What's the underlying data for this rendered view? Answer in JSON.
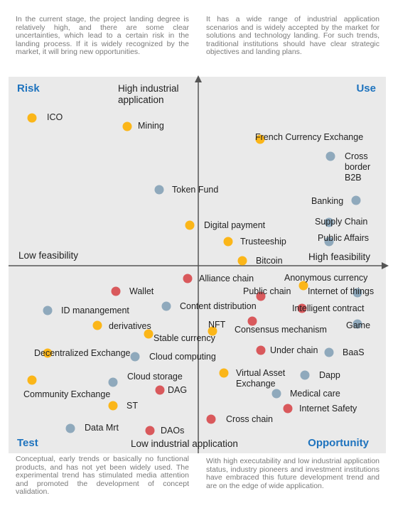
{
  "descriptions": {
    "top_left": "In the current stage, the project landing degree is relatively high, and there are some clear uncertainties, which lead to a certain risk in the landing process. If it is widely recognized by the market, it will bring new opportunities.",
    "top_right": "It has a wide range of industrial application scenarios and is widely accepted by the market for solutions and technology landing. For such trends, traditional institutions should have clear strategic objectives and landing plans.",
    "bottom_left": "Conceptual, early trends or basically no functional products, and has not yet been widely used. The experimental trend has stimulated media attention and promoted the development of concept validation.",
    "bottom_right": "With high executability and low industrial application status, industry pioneers and investment institutions have embraced this future development trend and are on the edge of wide application."
  },
  "quadrants": {
    "top_left": "Risk",
    "top_right": "Use",
    "bottom_left": "Test",
    "bottom_right": "Opportunity"
  },
  "axes": {
    "y_top_line1": "High industrial",
    "y_top_line2": "application",
    "y_bottom": "Low industrial application",
    "x_left": "Low feasibility",
    "x_right": "High feasibility"
  },
  "colors": {
    "panel": "#eaeaea",
    "axis": "#555555",
    "quadrant_label": "#1e73be",
    "yellow": "#fbb619",
    "blue": "#8fa9bc",
    "red": "#d9595c"
  },
  "points": [
    {
      "label": "ICO",
      "color": "yellow"
    },
    {
      "label": "Mining",
      "color": "yellow"
    },
    {
      "label": "French Currency Exchange",
      "color": "yellow"
    },
    {
      "label": "Cross border B2B",
      "color": "blue"
    },
    {
      "label": "Token Fund",
      "color": "blue"
    },
    {
      "label": "Banking",
      "color": "blue"
    },
    {
      "label": "Digital payment",
      "color": "yellow"
    },
    {
      "label": "Supply Chain",
      "color": "blue"
    },
    {
      "label": "Trusteeship",
      "color": "yellow"
    },
    {
      "label": "Public Affairs",
      "color": "blue"
    },
    {
      "label": "Bitcoin",
      "color": "yellow"
    },
    {
      "label": "Alliance chain",
      "color": "red"
    },
    {
      "label": "Anonymous currency",
      "color": "yellow"
    },
    {
      "label": "Wallet",
      "color": "red"
    },
    {
      "label": "Public chain",
      "color": "red"
    },
    {
      "label": "Internet of things",
      "color": "blue"
    },
    {
      "label": "ID manangement",
      "color": "blue"
    },
    {
      "label": "Content distribution",
      "color": "blue"
    },
    {
      "label": "Intelligent contract",
      "color": "red"
    },
    {
      "label": "derivatives",
      "color": "yellow"
    },
    {
      "label": "NFT",
      "color": "yellow"
    },
    {
      "label": "Consensus mechanism",
      "color": "red"
    },
    {
      "label": "Game",
      "color": "blue"
    },
    {
      "label": "Stable currency",
      "color": "yellow"
    },
    {
      "label": "Under chain",
      "color": "red"
    },
    {
      "label": "BaaS",
      "color": "blue"
    },
    {
      "label": "Decentralized Exchange",
      "color": "yellow"
    },
    {
      "label": "Cloud computing",
      "color": "blue"
    },
    {
      "label": "Virtual Asset Exchange",
      "color": "yellow"
    },
    {
      "label": "Dapp",
      "color": "blue"
    },
    {
      "label": "Cloud storage",
      "color": "blue"
    },
    {
      "label": "Community Exchange",
      "color": "yellow"
    },
    {
      "label": "DAG",
      "color": "red"
    },
    {
      "label": "Medical care",
      "color": "blue"
    },
    {
      "label": "ST",
      "color": "yellow"
    },
    {
      "label": "Internet Safety",
      "color": "red"
    },
    {
      "label": "Cross chain",
      "color": "red"
    },
    {
      "label": "Data Mrt",
      "color": "blue"
    },
    {
      "label": "DAOs",
      "color": "red"
    }
  ]
}
